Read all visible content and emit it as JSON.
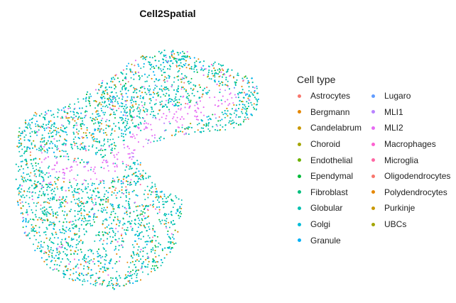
{
  "chart_data": {
    "type": "scatter",
    "title": "Cell2Spatial",
    "legend_title": "Cell type",
    "legend_position": "right",
    "grid": false,
    "axes_visible": false,
    "series": [
      {
        "name": "Astrocytes",
        "color": "#F8766D"
      },
      {
        "name": "Bergmann",
        "color": "#E58700"
      },
      {
        "name": "Candelabrum",
        "color": "#C99800"
      },
      {
        "name": "Choroid",
        "color": "#A3A500"
      },
      {
        "name": "Endothelial",
        "color": "#6BB100"
      },
      {
        "name": "Ependymal",
        "color": "#00BA38"
      },
      {
        "name": "Fibroblast",
        "color": "#00BF7D"
      },
      {
        "name": "Globular",
        "color": "#00C0AF"
      },
      {
        "name": "Golgi",
        "color": "#00BCD8"
      },
      {
        "name": "Granule",
        "color": "#00B0F6"
      },
      {
        "name": "Lugaro",
        "color": "#619CFF"
      },
      {
        "name": "MLI1",
        "color": "#B983FF"
      },
      {
        "name": "MLI2",
        "color": "#E76BF3"
      },
      {
        "name": "Macrophages",
        "color": "#FD61D1"
      },
      {
        "name": "Microglia",
        "color": "#FF67A4"
      },
      {
        "name": "Oligodendrocytes",
        "color": "#F8766D"
      },
      {
        "name": "Polydendrocytes",
        "color": "#E58700"
      },
      {
        "name": "Purkinje",
        "color": "#C99800"
      },
      {
        "name": "UBCs",
        "color": "#A3A500"
      }
    ]
  }
}
